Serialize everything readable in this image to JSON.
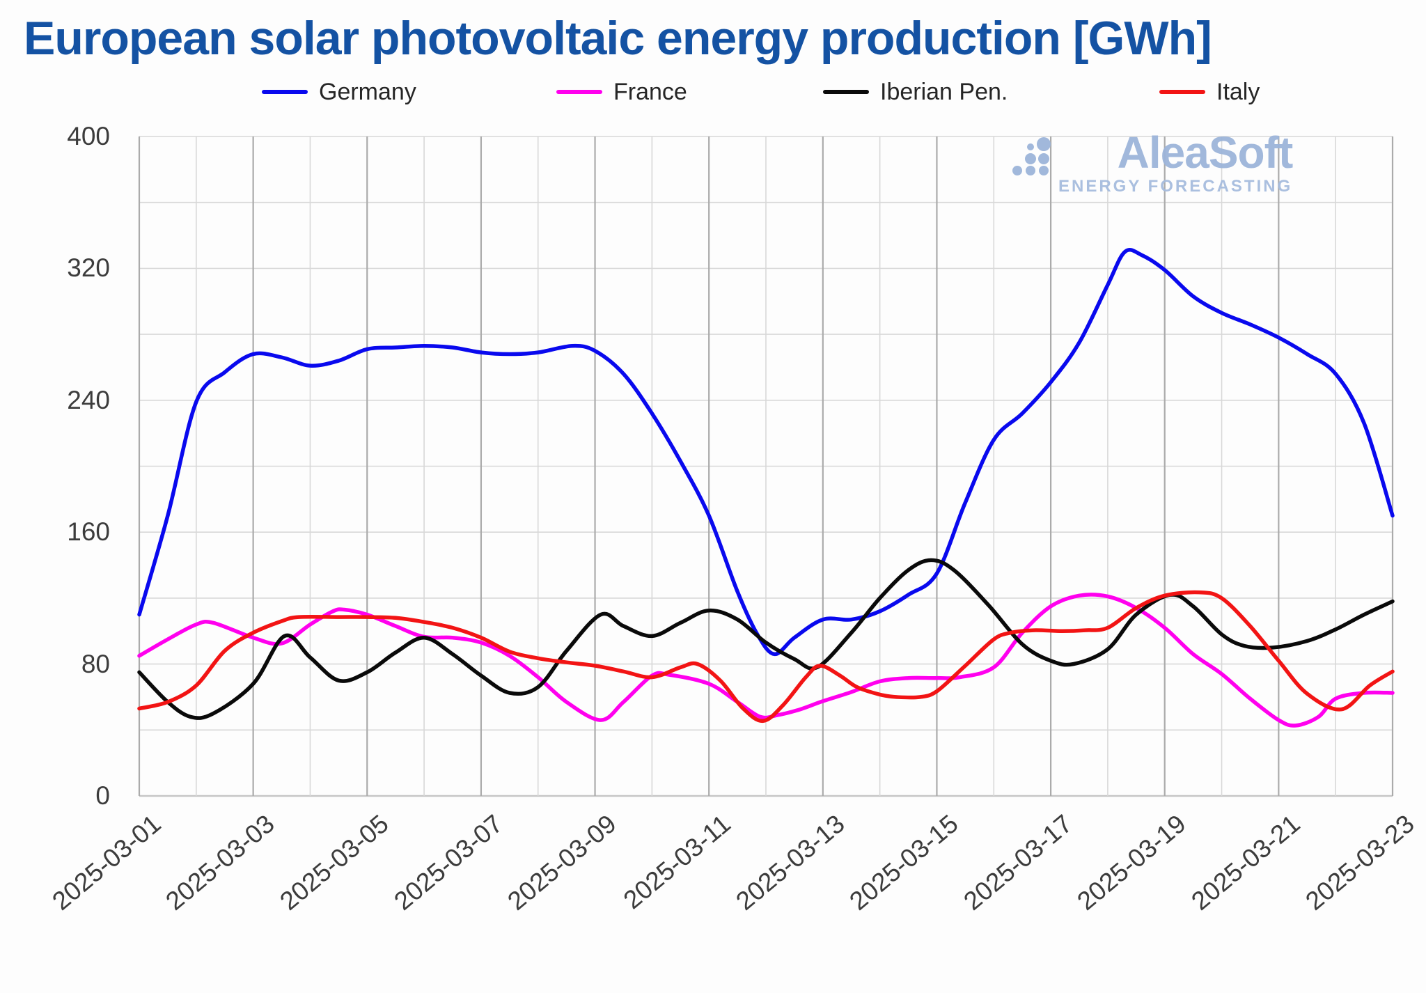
{
  "title": "European solar photovoltaic energy production [GWh]",
  "logo": {
    "brand": "AleaSoft",
    "tagline": "ENERGY FORECASTING"
  },
  "colors": {
    "title": "#1452A3",
    "axis_text": "#3C3C3C",
    "grid_minor": "#D8D8D8",
    "grid_major": "#ABABAB",
    "axis_line": "#C6C6C6",
    "logo": "#9DB5DA",
    "logo_tagline": "#A6BCDE"
  },
  "chart_data": {
    "type": "line",
    "title": "European solar photovoltaic energy production [GWh]",
    "xlabel": "",
    "ylabel": "",
    "ylim": [
      0,
      400
    ],
    "ytick_step_grid": 40,
    "ytick_step_label": 80,
    "x_unit": "days since 2025-03-01",
    "x_domain_days": [
      0,
      22
    ],
    "grid": true,
    "legend_position": "top",
    "xtick_labels": [
      "2025-03-01",
      "2025-03-03",
      "2025-03-05",
      "2025-03-07",
      "2025-03-09",
      "2025-03-11",
      "2025-03-13",
      "2025-03-15",
      "2025-03-17",
      "2025-03-19",
      "2025-03-21",
      "2025-03-23"
    ],
    "series": [
      {
        "name": "Germany",
        "color": "#0909EE",
        "points": [
          [
            0,
            110
          ],
          [
            0.5,
            170
          ],
          [
            1,
            239
          ],
          [
            1.5,
            257
          ],
          [
            2,
            268
          ],
          [
            2.5,
            266
          ],
          [
            3,
            261
          ],
          [
            3.5,
            264
          ],
          [
            4,
            271
          ],
          [
            4.5,
            272
          ],
          [
            5,
            273
          ],
          [
            5.5,
            272
          ],
          [
            6,
            269
          ],
          [
            6.5,
            268
          ],
          [
            7,
            269
          ],
          [
            7.6,
            273
          ],
          [
            8,
            270
          ],
          [
            8.5,
            256
          ],
          [
            9,
            232
          ],
          [
            9.5,
            203
          ],
          [
            10,
            170
          ],
          [
            10.5,
            124
          ],
          [
            10.85,
            98
          ],
          [
            11.15,
            86
          ],
          [
            11.5,
            96
          ],
          [
            12,
            107
          ],
          [
            12.5,
            107
          ],
          [
            13,
            112
          ],
          [
            13.5,
            122
          ],
          [
            14,
            135
          ],
          [
            14.5,
            178
          ],
          [
            15,
            216
          ],
          [
            15.5,
            232
          ],
          [
            16,
            251
          ],
          [
            16.5,
            275
          ],
          [
            17,
            310
          ],
          [
            17.3,
            330
          ],
          [
            17.6,
            328
          ],
          [
            18,
            319
          ],
          [
            18.5,
            303
          ],
          [
            19,
            293
          ],
          [
            19.5,
            286
          ],
          [
            20,
            278
          ],
          [
            20.5,
            268
          ],
          [
            21,
            256
          ],
          [
            21.5,
            226
          ],
          [
            22,
            170
          ]
        ]
      },
      {
        "name": "France",
        "color": "#FF00EE",
        "points": [
          [
            0,
            85
          ],
          [
            0.5,
            95
          ],
          [
            1,
            104
          ],
          [
            1.3,
            105
          ],
          [
            2,
            96
          ],
          [
            2.5,
            92.5
          ],
          [
            3,
            104
          ],
          [
            3.4,
            112
          ],
          [
            3.6,
            113
          ],
          [
            4,
            110
          ],
          [
            4.5,
            103
          ],
          [
            5,
            96.5
          ],
          [
            5.5,
            96
          ],
          [
            6,
            93
          ],
          [
            6.5,
            85
          ],
          [
            7,
            72
          ],
          [
            7.5,
            57
          ],
          [
            8.1,
            46
          ],
          [
            8.5,
            57
          ],
          [
            9,
            73
          ],
          [
            9.3,
            73.5
          ],
          [
            10,
            68
          ],
          [
            10.5,
            57
          ],
          [
            10.9,
            48
          ],
          [
            11.2,
            49
          ],
          [
            11.6,
            52.5
          ],
          [
            12,
            57.5
          ],
          [
            12.5,
            63
          ],
          [
            13,
            69.5
          ],
          [
            13.5,
            71.5
          ],
          [
            14,
            71.5
          ],
          [
            14.4,
            72
          ],
          [
            15,
            78
          ],
          [
            15.5,
            99
          ],
          [
            16,
            115
          ],
          [
            16.5,
            121.5
          ],
          [
            17,
            121
          ],
          [
            17.5,
            114
          ],
          [
            18,
            102
          ],
          [
            18.5,
            86
          ],
          [
            19,
            74
          ],
          [
            19.5,
            59
          ],
          [
            20,
            46
          ],
          [
            20.3,
            42.7
          ],
          [
            20.7,
            48
          ],
          [
            21,
            59
          ],
          [
            21.5,
            62.5
          ],
          [
            22,
            62.5
          ]
        ]
      },
      {
        "name": "Iberian Pen.",
        "color": "#0A0A0A",
        "points": [
          [
            0,
            75
          ],
          [
            0.5,
            57
          ],
          [
            0.9,
            48
          ],
          [
            1.3,
            50
          ],
          [
            2,
            68
          ],
          [
            2.55,
            97
          ],
          [
            3,
            84
          ],
          [
            3.5,
            70
          ],
          [
            4,
            75
          ],
          [
            4.5,
            87
          ],
          [
            5,
            96
          ],
          [
            5.5,
            86
          ],
          [
            6,
            73
          ],
          [
            6.5,
            62.5
          ],
          [
            7,
            66
          ],
          [
            7.5,
            88
          ],
          [
            8.1,
            110
          ],
          [
            8.5,
            103
          ],
          [
            9,
            97
          ],
          [
            9.5,
            105
          ],
          [
            10,
            112.5
          ],
          [
            10.5,
            107
          ],
          [
            11,
            93
          ],
          [
            11.5,
            83
          ],
          [
            11.9,
            78
          ],
          [
            12.5,
            99
          ],
          [
            13,
            120
          ],
          [
            13.5,
            137
          ],
          [
            13.9,
            143
          ],
          [
            14.3,
            137
          ],
          [
            14.9,
            116
          ],
          [
            15.5,
            92
          ],
          [
            16,
            82
          ],
          [
            16.4,
            80
          ],
          [
            17,
            89
          ],
          [
            17.5,
            110
          ],
          [
            18.1,
            122
          ],
          [
            18.5,
            115
          ],
          [
            19,
            98
          ],
          [
            19.4,
            91
          ],
          [
            19.9,
            90
          ],
          [
            20.5,
            94
          ],
          [
            21,
            101
          ],
          [
            21.5,
            110
          ],
          [
            22,
            118
          ]
        ]
      },
      {
        "name": "Italy",
        "color": "#F21414",
        "points": [
          [
            0,
            53
          ],
          [
            0.5,
            57
          ],
          [
            1,
            67
          ],
          [
            1.5,
            88
          ],
          [
            2,
            99
          ],
          [
            2.5,
            106
          ],
          [
            2.8,
            108.5
          ],
          [
            3.5,
            108.5
          ],
          [
            4,
            108.5
          ],
          [
            4.5,
            108
          ],
          [
            5,
            105.5
          ],
          [
            5.5,
            102
          ],
          [
            6,
            96
          ],
          [
            6.5,
            87.5
          ],
          [
            7,
            83.5
          ],
          [
            7.5,
            81
          ],
          [
            8,
            79
          ],
          [
            8.5,
            75.5
          ],
          [
            9,
            72
          ],
          [
            9.5,
            78
          ],
          [
            9.8,
            80
          ],
          [
            10.2,
            70
          ],
          [
            10.6,
            53
          ],
          [
            10.95,
            45.5
          ],
          [
            11.3,
            55
          ],
          [
            11.7,
            72
          ],
          [
            11.95,
            79
          ],
          [
            12.3,
            73
          ],
          [
            12.6,
            66
          ],
          [
            13,
            61.5
          ],
          [
            13.3,
            60
          ],
          [
            13.7,
            60
          ],
          [
            14,
            63.5
          ],
          [
            14.5,
            79
          ],
          [
            15,
            95
          ],
          [
            15.3,
            99
          ],
          [
            15.7,
            100.5
          ],
          [
            16.2,
            100
          ],
          [
            16.6,
            100.5
          ],
          [
            17,
            102
          ],
          [
            17.5,
            114
          ],
          [
            18,
            121.5
          ],
          [
            18.6,
            123.5
          ],
          [
            19,
            120
          ],
          [
            19.5,
            103
          ],
          [
            20,
            82
          ],
          [
            20.5,
            62
          ],
          [
            21.1,
            52.5
          ],
          [
            21.6,
            67
          ],
          [
            22,
            75.5
          ]
        ]
      }
    ]
  }
}
